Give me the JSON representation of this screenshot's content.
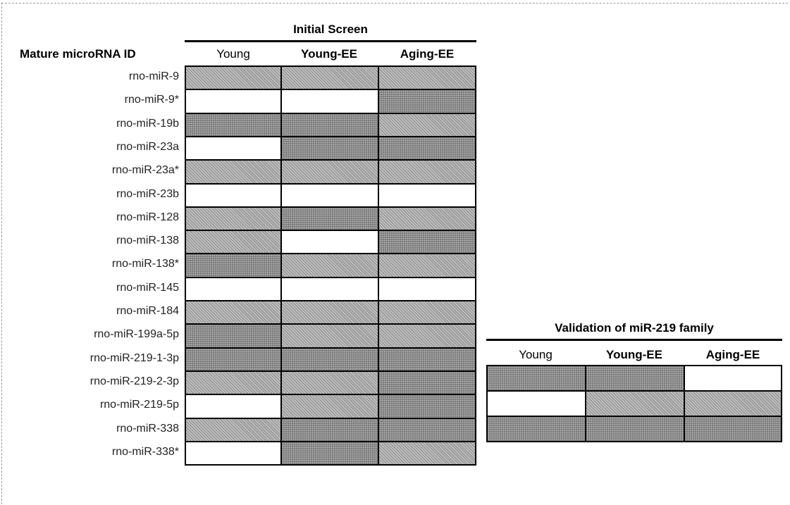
{
  "initial_screen": {
    "title": "Initial Screen",
    "id_header": "Mature microRNA ID",
    "columns": [
      "Young",
      "Young-EE",
      "Aging-EE"
    ],
    "rows": [
      {
        "id": "rno-miR-9",
        "cells": [
          "light",
          "light",
          "light"
        ]
      },
      {
        "id": "rno-miR-9*",
        "cells": [
          "white",
          "white",
          "dark"
        ]
      },
      {
        "id": "rno-miR-19b",
        "cells": [
          "dark",
          "dark",
          "light"
        ]
      },
      {
        "id": "rno-miR-23a",
        "cells": [
          "white",
          "dark",
          "dark"
        ]
      },
      {
        "id": "rno-miR-23a*",
        "cells": [
          "light",
          "light",
          "light"
        ]
      },
      {
        "id": "rno-miR-23b",
        "cells": [
          "white",
          "white",
          "white"
        ]
      },
      {
        "id": "rno-miR-128",
        "cells": [
          "light",
          "dark",
          "light"
        ]
      },
      {
        "id": "rno-miR-138",
        "cells": [
          "light",
          "white",
          "dark"
        ]
      },
      {
        "id": "rno-miR-138*",
        "cells": [
          "dark",
          "light",
          "light"
        ]
      },
      {
        "id": "rno-miR-145",
        "cells": [
          "white",
          "white",
          "white"
        ]
      },
      {
        "id": "rno-miR-184",
        "cells": [
          "light",
          "light",
          "light"
        ]
      },
      {
        "id": "rno-miR-199a-5p",
        "cells": [
          "dark",
          "light",
          "light"
        ]
      },
      {
        "id": "rno-miR-219-1-3p",
        "cells": [
          "dark",
          "dark",
          "dark"
        ]
      },
      {
        "id": "rno-miR-219-2-3p",
        "cells": [
          "light",
          "light",
          "dark"
        ]
      },
      {
        "id": "rno-miR-219-5p",
        "cells": [
          "white",
          "light",
          "dark"
        ]
      },
      {
        "id": "rno-miR-338",
        "cells": [
          "light",
          "dark",
          "dark"
        ]
      },
      {
        "id": "rno-miR-338*",
        "cells": [
          "white",
          "dark",
          "light"
        ]
      }
    ]
  },
  "validation": {
    "title": "Validation of miR-219 family",
    "columns": [
      "Young",
      "Young-EE",
      "Aging-EE"
    ],
    "rows": [
      [
        "dark",
        "dark",
        "white"
      ],
      [
        "white",
        "light",
        "light"
      ],
      [
        "dark",
        "dark",
        "dark"
      ]
    ]
  }
}
